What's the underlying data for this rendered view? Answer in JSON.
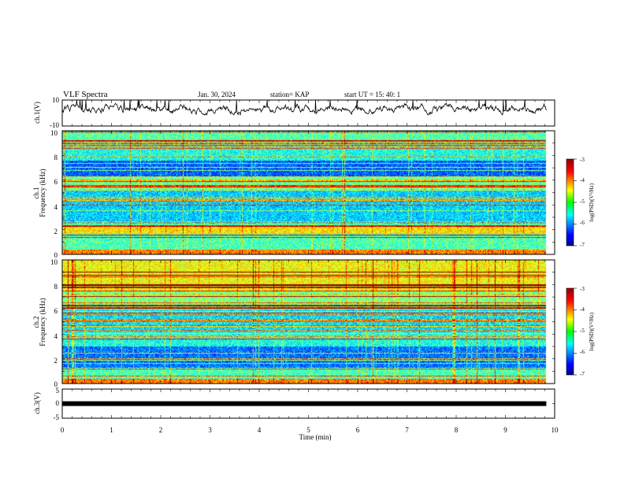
{
  "header": {
    "title": "VLF Spectra",
    "date": "Jan. 30, 2024",
    "station": "station= KAP",
    "start": "start UT = 15: 40: 1"
  },
  "chart_data": [
    {
      "type": "line",
      "ylabel": "ch.1(V)",
      "ylim": [
        -10,
        10
      ],
      "yticks": [
        "10",
        "-10"
      ],
      "x_range_min": [
        0,
        9.83
      ],
      "approx_level": 3,
      "approx_range": [
        -2,
        10
      ]
    },
    {
      "type": "heatmap",
      "ylabel_top": "ch.1",
      "ylabel": "Frequency (kHz)",
      "ylim": [
        0,
        10
      ],
      "yticks": [
        "0",
        "2",
        "4",
        "6",
        "8",
        "10"
      ],
      "colorbar": {
        "label": "log(PSD)(V²/Hz)",
        "ticks": [
          "-3",
          "-4",
          "-5",
          "-6",
          "-7"
        ],
        "range": [
          -7,
          -3
        ]
      }
    },
    {
      "type": "heatmap",
      "ylabel_top": "ch.2",
      "ylabel": "Frequency (kHz)",
      "ylim": [
        0,
        10
      ],
      "yticks": [
        "0",
        "2",
        "4",
        "6",
        "8",
        "10"
      ],
      "colorbar": {
        "label": "log(PSD)(V²/Hz)",
        "ticks": [
          "-3",
          "-4",
          "-5",
          "-6",
          "-7"
        ],
        "range": [
          -7,
          -3
        ]
      }
    },
    {
      "type": "line",
      "ylabel": "ch.3(V)",
      "ylim": [
        -5,
        5
      ],
      "yticks": [
        "5",
        "0",
        "-5"
      ],
      "approx_level": 0,
      "xlabel": "Time (min)",
      "xlim": [
        0,
        10
      ],
      "xticks": [
        "0",
        "1",
        "2",
        "3",
        "4",
        "5",
        "6",
        "7",
        "8",
        "9",
        "10"
      ]
    }
  ]
}
